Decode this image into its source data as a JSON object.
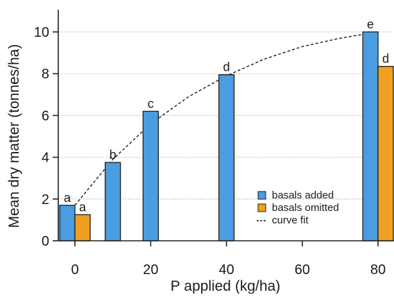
{
  "chart_data": {
    "type": "bar",
    "xlabel": "P applied (kg/ha)",
    "ylabel": "Mean dry matter (tonnes/ha)",
    "x_ticks": [
      0,
      20,
      40,
      60,
      80
    ],
    "y_ticks": [
      0,
      2,
      4,
      6,
      8,
      10
    ],
    "xlim": [
      -4,
      84
    ],
    "ylim": [
      0,
      11
    ],
    "grid": true,
    "legend_position": "right",
    "series": [
      {
        "name": "basals added",
        "color": "#4a9de0",
        "points": [
          {
            "x": 0,
            "y": 1.7,
            "label": "a"
          },
          {
            "x": 10,
            "y": 3.75,
            "label": "b"
          },
          {
            "x": 20,
            "y": 6.2,
            "label": "c"
          },
          {
            "x": 40,
            "y": 7.95,
            "label": "d"
          },
          {
            "x": 80,
            "y": 10.0,
            "label": "e"
          }
        ]
      },
      {
        "name": "basals omitted",
        "color": "#f0a020",
        "points": [
          {
            "x": 0,
            "y": 1.25,
            "label": "a"
          },
          {
            "x": 80,
            "y": 8.35,
            "label": "d"
          }
        ]
      }
    ],
    "curve": {
      "name": "curve fit",
      "points": [
        [
          0,
          1.7
        ],
        [
          10,
          3.9
        ],
        [
          20,
          5.6
        ],
        [
          30,
          6.9
        ],
        [
          40,
          7.9
        ],
        [
          50,
          8.7
        ],
        [
          60,
          9.3
        ],
        [
          70,
          9.7
        ],
        [
          80,
          10.0
        ]
      ]
    }
  }
}
